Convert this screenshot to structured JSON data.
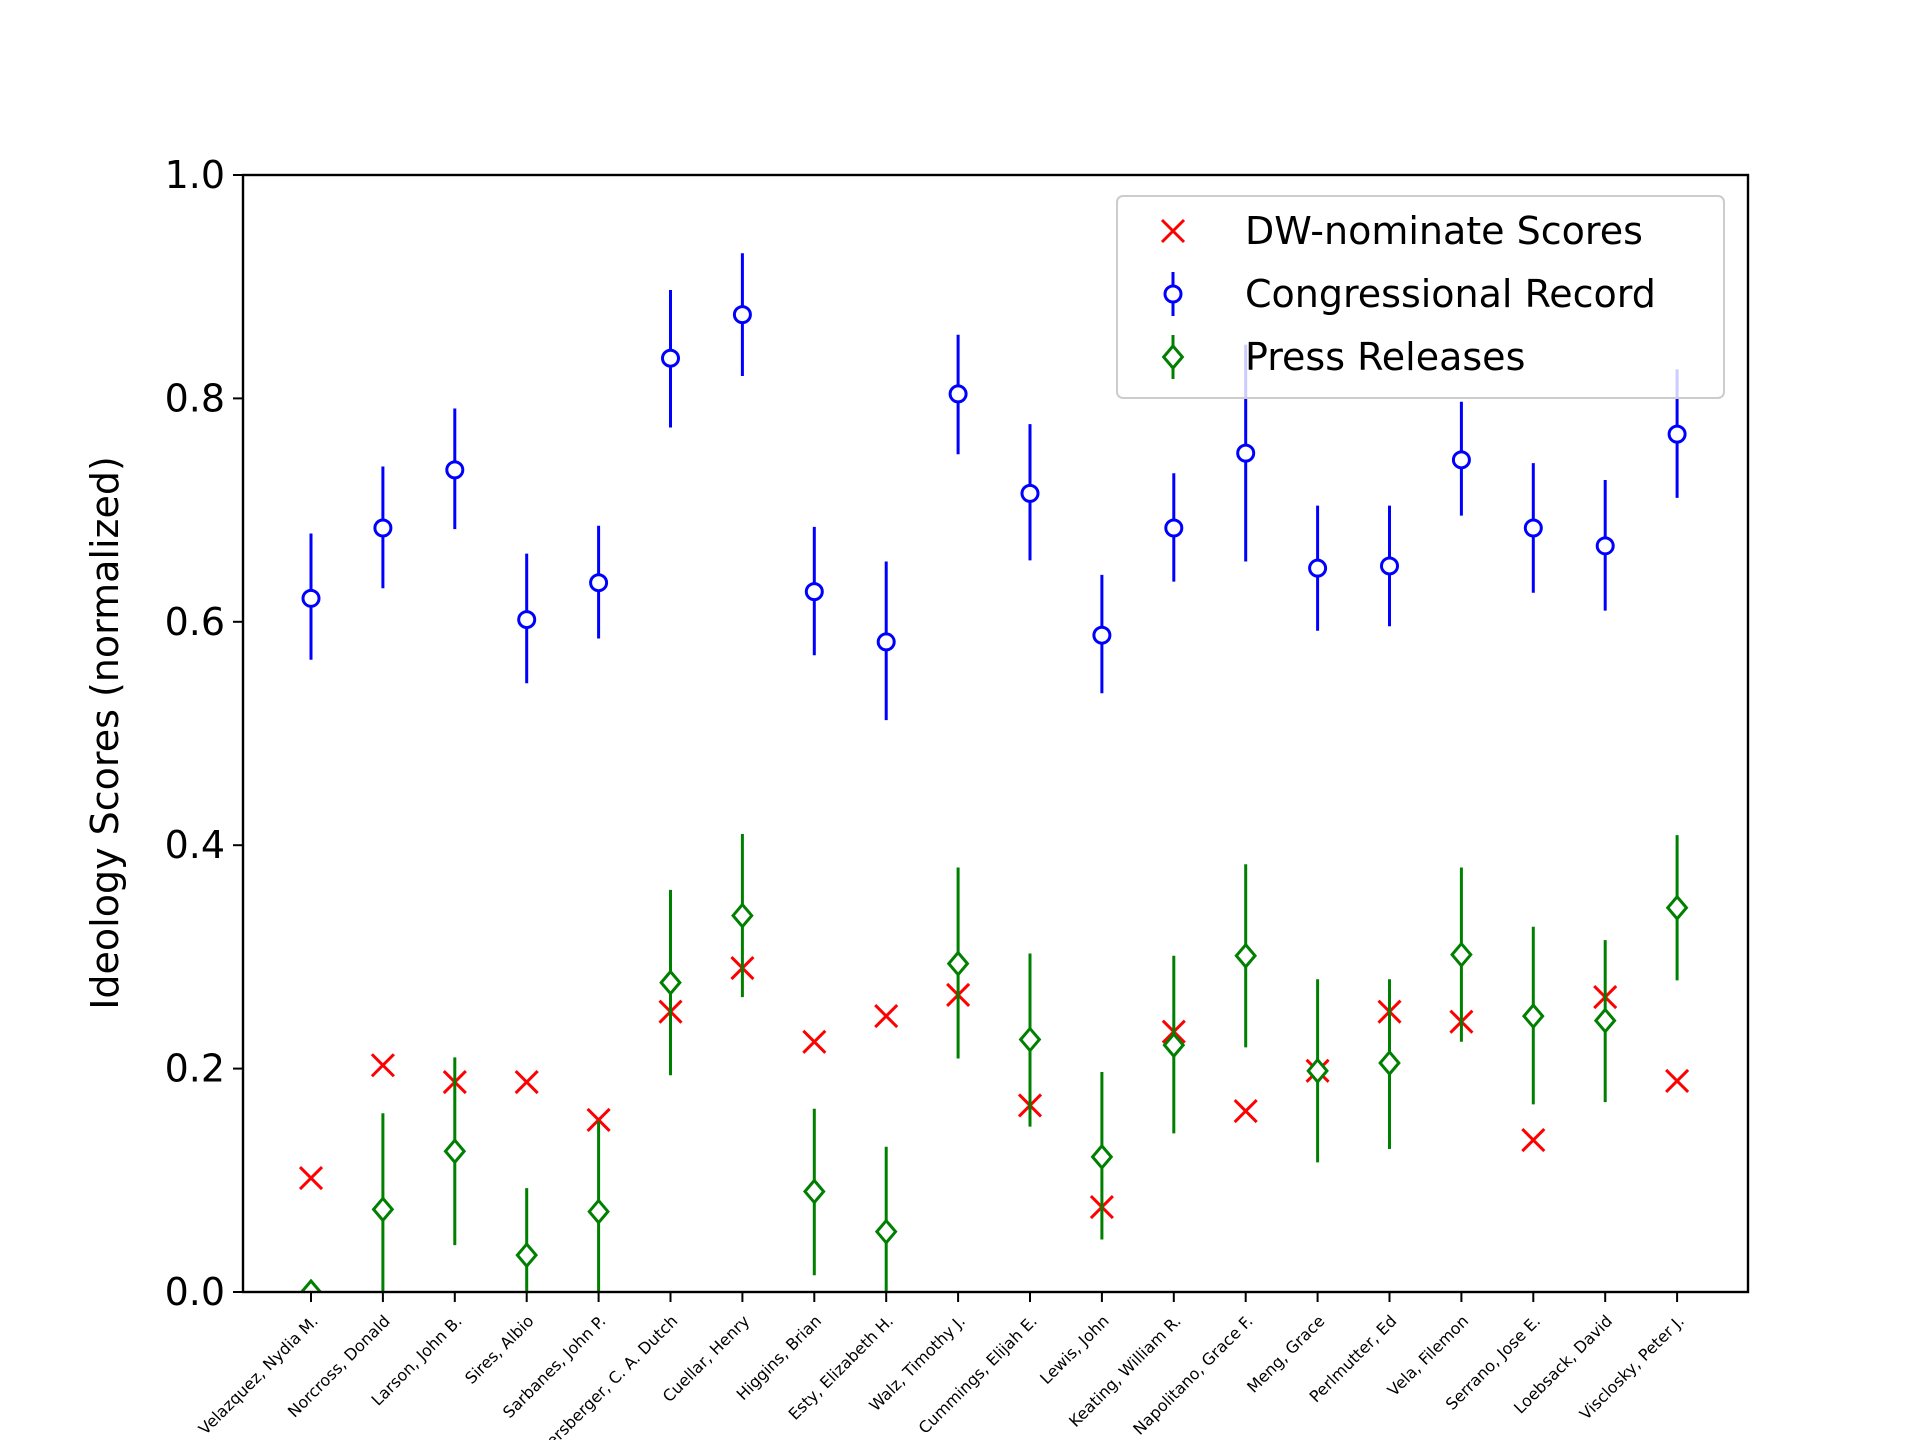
{
  "chart_data": {
    "type": "scatter",
    "title": "",
    "xlabel": "",
    "ylabel": "Ideology Scores (normalized)",
    "ylim": [
      0.0,
      1.0
    ],
    "yticks": [
      0.0,
      0.2,
      0.4,
      0.6,
      0.8,
      1.0
    ],
    "ytick_labels": [
      "0.0",
      "0.2",
      "0.4",
      "0.6",
      "0.8",
      "1.0"
    ],
    "grid": false,
    "legend_position": "top-right",
    "categories": [
      "Velazquez, Nydia M.",
      "Norcross, Donald",
      "Larson, John B.",
      "Sires, Albio",
      "Sarbanes, John P.",
      "Ruppersberger, C. A. Dutch",
      "Cuellar, Henry",
      "Higgins, Brian",
      "Esty, Elizabeth H.",
      "Walz, Timothy J.",
      "Cummings, Elijah E.",
      "Lewis, John",
      "Keating, William R.",
      "Napolitano, Grace F.",
      "Meng, Grace",
      "Perlmutter, Ed",
      "Vela, Filemon",
      "Serrano, Jose E.",
      "Loebsack, David",
      "Visclosky, Peter J."
    ],
    "series": [
      {
        "name": "DW-nominate Scores",
        "marker": "x",
        "color": "#ff0000",
        "values": [
          0.102,
          0.203,
          0.188,
          0.188,
          0.154,
          0.251,
          0.29,
          0.224,
          0.247,
          0.266,
          0.167,
          0.076,
          0.233,
          0.162,
          0.198,
          0.251,
          0.242,
          0.136,
          0.264,
          0.189
        ]
      },
      {
        "name": "Congressional Record",
        "marker": "o",
        "color": "#0000ff",
        "values": [
          0.621,
          0.684,
          0.736,
          0.602,
          0.635,
          0.836,
          0.875,
          0.627,
          0.582,
          0.804,
          0.715,
          0.588,
          0.684,
          0.751,
          0.648,
          0.65,
          0.745,
          0.684,
          0.668,
          0.768
        ],
        "error_low": [
          0.566,
          0.63,
          0.683,
          0.545,
          0.585,
          0.774,
          0.82,
          0.57,
          0.512,
          0.75,
          0.655,
          0.536,
          0.636,
          0.654,
          0.592,
          0.596,
          0.695,
          0.626,
          0.61,
          0.711
        ],
        "error_high": [
          0.679,
          0.739,
          0.791,
          0.661,
          0.686,
          0.897,
          0.93,
          0.685,
          0.654,
          0.857,
          0.777,
          0.642,
          0.733,
          0.848,
          0.704,
          0.704,
          0.797,
          0.742,
          0.727,
          0.826
        ]
      },
      {
        "name": "Press Releases",
        "marker": "D",
        "color": "#008000",
        "values": [
          0.0,
          0.074,
          0.126,
          0.033,
          0.072,
          0.277,
          0.337,
          0.09,
          0.054,
          0.294,
          0.226,
          0.121,
          0.221,
          0.301,
          0.198,
          0.205,
          0.302,
          0.247,
          0.243,
          0.344
        ],
        "error_low": [
          0.0,
          0.0,
          0.042,
          0.0,
          0.0,
          0.194,
          0.264,
          0.015,
          0.0,
          0.209,
          0.148,
          0.047,
          0.142,
          0.219,
          0.116,
          0.128,
          0.224,
          0.168,
          0.17,
          0.279
        ],
        "error_high": [
          0.0,
          0.16,
          0.21,
          0.093,
          0.153,
          0.36,
          0.41,
          0.164,
          0.13,
          0.38,
          0.303,
          0.197,
          0.301,
          0.383,
          0.28,
          0.28,
          0.38,
          0.327,
          0.315,
          0.409
        ]
      }
    ]
  }
}
